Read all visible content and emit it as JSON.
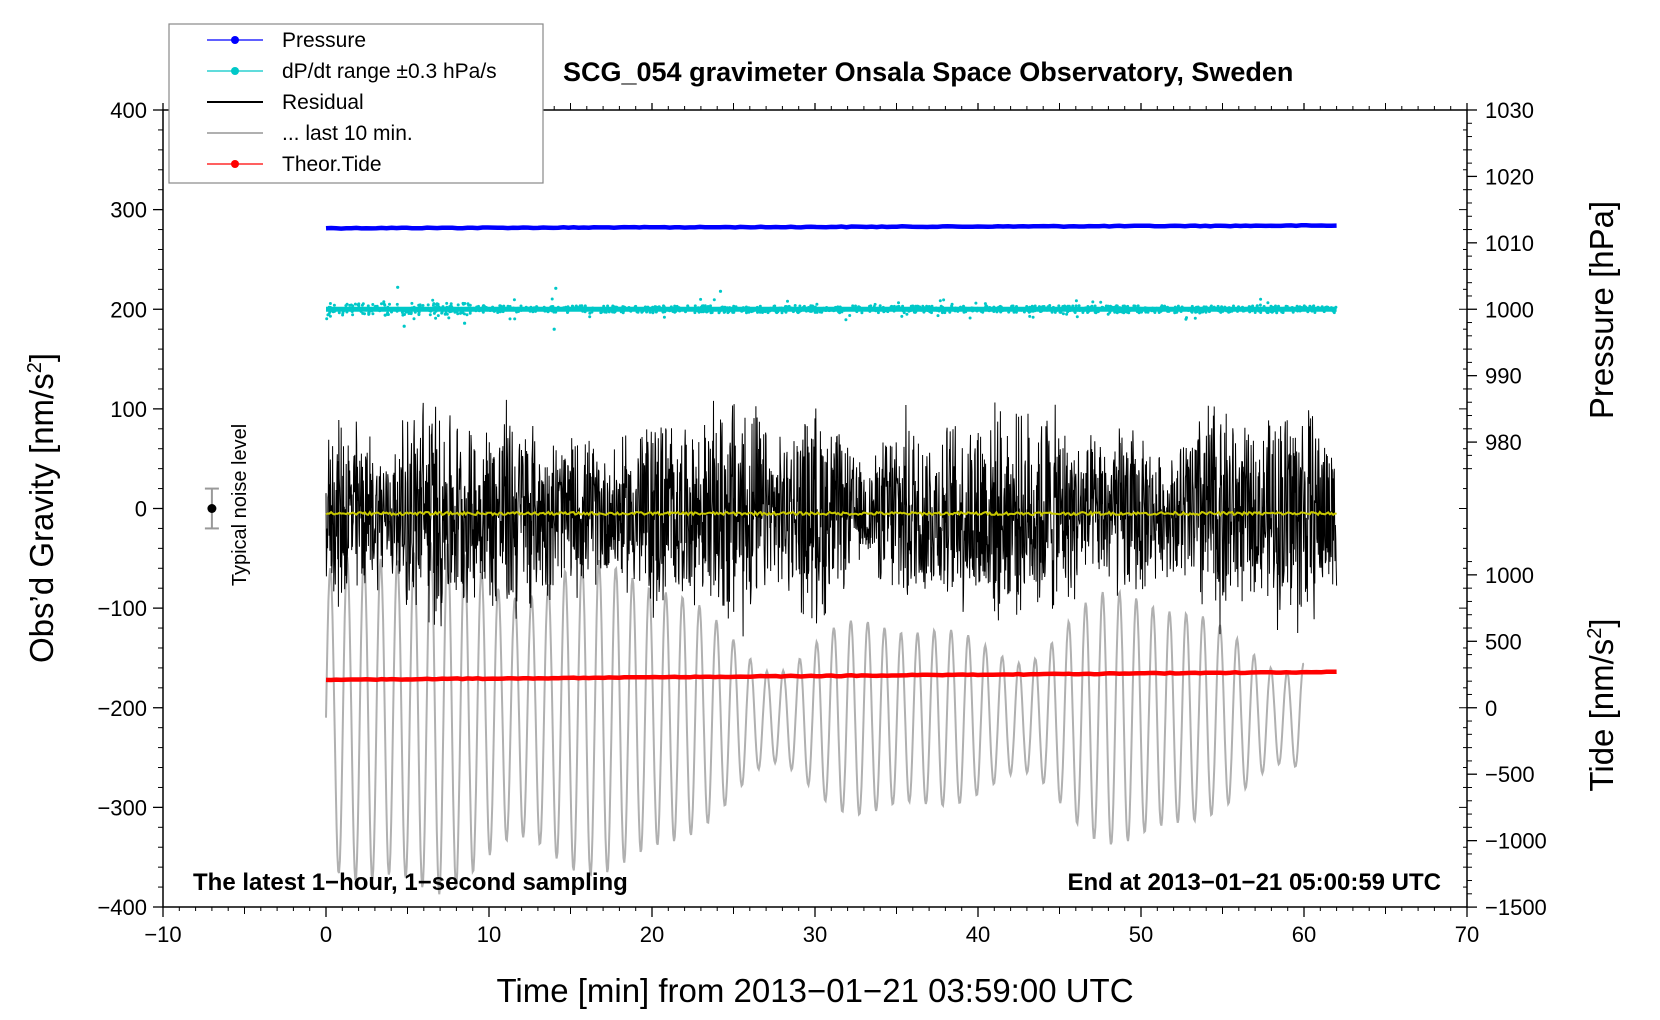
{
  "chart_data": {
    "type": "line",
    "title": "SCG_054 gravimeter Onsala Space Observatory, Sweden",
    "xlabel": "Time [min] from 2013−01−21 03:59:00 UTC",
    "ylabel_left": "Obs’d Gravity [nm/s",
    "ylabel_left_sup": "2",
    "ylabel_left_end": "]",
    "ylabel_right_pressure": "Pressure [hPa]",
    "ylabel_right_tide": "Tide [nm/s",
    "ylabel_right_tide_sup": "2",
    "ylabel_right_tide_end": "]",
    "xlim": [
      -10,
      70
    ],
    "ylim_left": [
      -400,
      400
    ],
    "x_ticks": [
      "−10",
      "0",
      "10",
      "20",
      "30",
      "40",
      "50",
      "60",
      "70"
    ],
    "y_ticks_left": [
      "400",
      "300",
      "200",
      "100",
      "0",
      "−100",
      "−200",
      "−300",
      "−400"
    ],
    "y_ticks_pressure": [
      "1030",
      "1020",
      "1010",
      "1000",
      "990",
      "980"
    ],
    "y_ticks_tide": [
      "1000",
      "500",
      "0",
      "−500",
      "−1000",
      "−1500"
    ],
    "annotation_left": "The latest 1−hour, 1−second sampling",
    "annotation_right": "End at 2013−01−21 05:00:59 UTC",
    "noise_label": "Typical noise level",
    "noise_level": {
      "x": -7,
      "y": 0,
      "err": 20
    },
    "legend": [
      {
        "label": "Pressure",
        "color": "#0000ff",
        "marker": true
      },
      {
        "label": "dP/dt range ±0.3 hPa/s",
        "color": "#00c8c8",
        "marker": true
      },
      {
        "label": "Residual",
        "color": "#000000",
        "marker": false
      },
      {
        "label": "... last 10 min.",
        "color": "#b0b0b0",
        "marker": false
      },
      {
        "label": "Theor.Tide",
        "color": "#ff0000",
        "marker": true
      }
    ],
    "series": [
      {
        "name": "Pressure",
        "axis": "pressure",
        "x_range": [
          0,
          62
        ],
        "y_start": 1012.2,
        "y_end": 1012.6,
        "color": "#0000ff"
      },
      {
        "name": "dP/dt range",
        "axis": "left",
        "x_range": [
          0,
          62
        ],
        "y_center": 200,
        "color": "#00c8c8"
      },
      {
        "name": "Residual",
        "axis": "left",
        "x_range": [
          0,
          62
        ],
        "y_center": -5,
        "amplitude_range": [
          50,
          145
        ],
        "color": "#000000"
      },
      {
        "name": "Residual smoothed",
        "axis": "left",
        "x_range": [
          0,
          62
        ],
        "y_center": -5,
        "color": "#c8c800"
      },
      {
        "name": "... last 10 min.",
        "axis": "left",
        "x_range": [
          0,
          60
        ],
        "y_center": -210,
        "amplitude_range": [
          25,
          170
        ],
        "color": "#b0b0b0"
      },
      {
        "name": "Theor.Tide",
        "axis": "left",
        "x_range": [
          0,
          62
        ],
        "y_start": -172,
        "y_end": -164,
        "color": "#ff0000"
      }
    ]
  }
}
